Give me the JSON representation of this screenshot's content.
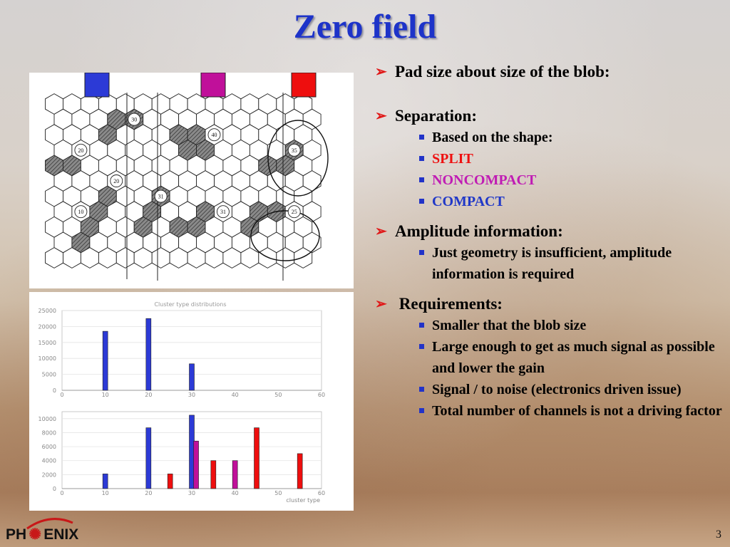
{
  "slide": {
    "title": "Zero field",
    "page_number": "3"
  },
  "logo": {
    "text_left": "PH",
    "text_right": "ENIX"
  },
  "colors": {
    "title": "#1d33c9",
    "split": "#ee1111",
    "noncompact": "#c01cb4",
    "compact": "#2038c8",
    "arrow": "#e01818"
  },
  "hex_panel": {
    "color_keys": [
      "#2c3ad6",
      "#c0109a",
      "#ee0e0e"
    ],
    "labels": [
      "30",
      "40",
      "20",
      "35",
      "20",
      "31",
      "10",
      "31",
      "25"
    ]
  },
  "bullets": [
    {
      "text": "Pad size about size of the blob:",
      "sub": []
    },
    {
      "text": "Separation:",
      "sub": [
        {
          "text": "Based on the shape:",
          "color": ""
        },
        {
          "text": "SPLIT",
          "color": "red"
        },
        {
          "text": "NONCOMPACT",
          "color": "mag"
        },
        {
          "text": "COMPACT",
          "color": "blu"
        }
      ]
    },
    {
      "text": "Amplitude information:",
      "sub": [
        {
          "text": "Just geometry is insufficient, amplitude information is required",
          "color": ""
        }
      ]
    },
    {
      "text": " Requirements:",
      "sub": [
        {
          "text": "Smaller that the blob size",
          "color": ""
        },
        {
          "text": "Large enough to get as much signal as possible and lower the gain",
          "color": ""
        },
        {
          "text": "Signal / to noise (electronics driven issue)",
          "color": ""
        },
        {
          "text": "Total number of channels is not a driving factor",
          "color": ""
        }
      ]
    }
  ],
  "chart_data": [
    {
      "type": "bar",
      "title": "Cluster type distributions",
      "xlabel": "",
      "ylabel": "",
      "xlim": [
        0,
        60
      ],
      "ylim": [
        0,
        25000
      ],
      "x_ticks": [
        "0",
        "10",
        "20",
        "30",
        "40",
        "50",
        "60"
      ],
      "y_ticks": [
        "0",
        "5000",
        "10000",
        "15000",
        "20000",
        "25000"
      ],
      "bars": [
        {
          "x": 10,
          "value": 18500,
          "color": "#2c3ad6"
        },
        {
          "x": 20,
          "value": 22500,
          "color": "#2c3ad6"
        },
        {
          "x": 30,
          "value": 8300,
          "color": "#2c3ad6"
        }
      ]
    },
    {
      "type": "bar",
      "title": "",
      "xlabel": "cluster type",
      "ylabel": "",
      "xlim": [
        0,
        60
      ],
      "ylim": [
        0,
        11000
      ],
      "x_ticks": [
        "0",
        "10",
        "20",
        "30",
        "40",
        "50",
        "60"
      ],
      "y_ticks": [
        "0",
        "2000",
        "4000",
        "6000",
        "8000",
        "10000"
      ],
      "bars": [
        {
          "x": 10,
          "value": 2100,
          "color": "#2c3ad6"
        },
        {
          "x": 20,
          "value": 8700,
          "color": "#2c3ad6"
        },
        {
          "x": 25,
          "value": 2100,
          "color": "#ee0e0e"
        },
        {
          "x": 30,
          "value": 10500,
          "color": "#2c3ad6"
        },
        {
          "x": 31,
          "value": 6800,
          "color": "#c0109a"
        },
        {
          "x": 35,
          "value": 4000,
          "color": "#ee0e0e"
        },
        {
          "x": 40,
          "value": 4000,
          "color": "#c0109a"
        },
        {
          "x": 45,
          "value": 8700,
          "color": "#ee0e0e"
        },
        {
          "x": 55,
          "value": 5000,
          "color": "#ee0e0e"
        }
      ]
    }
  ]
}
